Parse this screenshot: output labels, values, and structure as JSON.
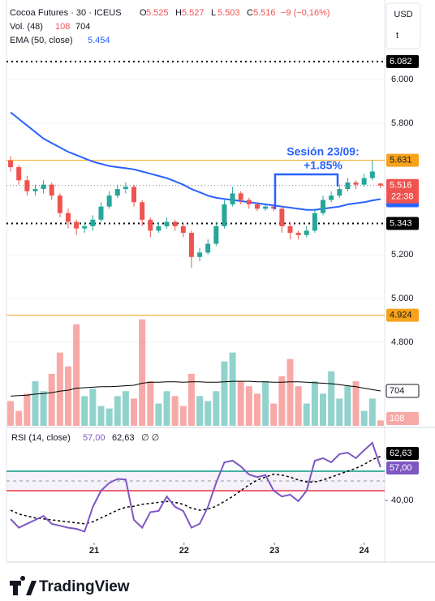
{
  "chart_data": {
    "type": "candlestick",
    "header": {
      "symbol": "Cocoa Futures · 30 · ICEUS",
      "ohlc": [
        {
          "label": "O",
          "value": 5.525
        },
        {
          "label": "H",
          "value": 5.527
        },
        {
          "label": "L",
          "value": 5.503
        },
        {
          "label": "C",
          "value": 5.516
        }
      ],
      "change": "−9 (−0,16%)",
      "currency": "USD",
      "unit": "t",
      "countdown": "22:38"
    },
    "xlim": [
      -0.5,
      45.5
    ],
    "xticks": [
      {
        "value": 10.16,
        "label": "21"
      },
      {
        "value": 21.1,
        "label": "22"
      },
      {
        "value": 32.1,
        "label": "23"
      },
      {
        "value": 43.0,
        "label": "24"
      }
    ],
    "ylim": [
      4.419,
      6.363
    ],
    "yticks": [
      {
        "value": 6.0,
        "label": "6.000"
      },
      {
        "value": 5.8,
        "label": "5.800"
      },
      {
        "value": 5.2,
        "label": "5.200"
      },
      {
        "value": 5.0,
        "label": "5.000"
      },
      {
        "value": 4.8,
        "label": "4.800"
      }
    ],
    "up_color": "#26a69a",
    "down_color": "#ef5350",
    "open": [
      5.63,
      5.6,
      5.54,
      5.49,
      5.5,
      5.52,
      5.47,
      5.39,
      5.35,
      5.32,
      5.33,
      5.36,
      5.42,
      5.47,
      5.5,
      5.51,
      5.44,
      5.36,
      5.31,
      5.33,
      5.35,
      5.33,
      5.3,
      5.19,
      5.21,
      5.25,
      5.33,
      5.43,
      5.48,
      5.45,
      5.43,
      5.41,
      5.42,
      5.41,
      5.33,
      5.3,
      5.29,
      5.31,
      5.39,
      5.45,
      5.47,
      5.5,
      5.53,
      5.52,
      5.55,
      5.525
    ],
    "high": [
      5.65,
      5.61,
      5.56,
      5.52,
      5.54,
      5.53,
      5.48,
      5.41,
      5.36,
      5.35,
      5.38,
      5.44,
      5.49,
      5.52,
      5.53,
      5.52,
      5.45,
      5.37,
      5.35,
      5.37,
      5.36,
      5.34,
      5.31,
      5.23,
      5.27,
      5.35,
      5.45,
      5.51,
      5.49,
      5.46,
      5.44,
      5.43,
      5.43,
      5.42,
      5.35,
      5.31,
      5.33,
      5.41,
      5.47,
      5.49,
      5.52,
      5.55,
      5.54,
      5.57,
      5.63,
      5.527
    ],
    "low": [
      5.58,
      5.52,
      5.47,
      5.47,
      5.48,
      5.45,
      5.37,
      5.32,
      5.29,
      5.3,
      5.31,
      5.35,
      5.41,
      5.46,
      5.48,
      5.42,
      5.33,
      5.28,
      5.3,
      5.32,
      5.31,
      5.28,
      5.14,
      5.17,
      5.2,
      5.24,
      5.32,
      5.42,
      5.43,
      5.41,
      5.4,
      5.4,
      5.4,
      5.3,
      5.27,
      5.27,
      5.28,
      5.3,
      5.38,
      5.44,
      5.46,
      5.49,
      5.5,
      5.51,
      5.54,
      5.503
    ],
    "close": [
      5.6,
      5.54,
      5.49,
      5.5,
      5.52,
      5.47,
      5.39,
      5.35,
      5.32,
      5.33,
      5.36,
      5.42,
      5.47,
      5.5,
      5.51,
      5.44,
      5.36,
      5.31,
      5.33,
      5.35,
      5.33,
      5.3,
      5.19,
      5.21,
      5.25,
      5.33,
      5.43,
      5.48,
      5.45,
      5.43,
      5.41,
      5.42,
      5.41,
      5.33,
      5.3,
      5.29,
      5.31,
      5.39,
      5.45,
      5.47,
      5.5,
      5.53,
      5.52,
      5.55,
      5.58,
      5.516
    ],
    "ema": {
      "name": "EMA (50, close)",
      "color": "#2962ff",
      "values": [
        5.85,
        5.82,
        5.79,
        5.76,
        5.73,
        5.71,
        5.69,
        5.67,
        5.655,
        5.64,
        5.625,
        5.615,
        5.605,
        5.6,
        5.595,
        5.59,
        5.58,
        5.57,
        5.56,
        5.55,
        5.535,
        5.52,
        5.5,
        5.485,
        5.47,
        5.46,
        5.455,
        5.45,
        5.445,
        5.44,
        5.435,
        5.43,
        5.425,
        5.42,
        5.415,
        5.41,
        5.405,
        5.405,
        5.41,
        5.415,
        5.42,
        5.43,
        5.435,
        5.44,
        5.448,
        5.454
      ]
    },
    "hlines": [
      {
        "value": 6.082,
        "color": "#000000",
        "style": "dotted",
        "text_color": "#ffffff"
      },
      {
        "value": 5.631,
        "color": "#f7a21b",
        "style": "solid",
        "text_color": "#131722"
      },
      {
        "value": 5.343,
        "color": "#000000",
        "style": "dotted",
        "text_color": "#ffffff"
      },
      {
        "value": 4.924,
        "color": "#f7a21b",
        "style": "solid",
        "text_color": "#131722"
      }
    ],
    "annotation": [
      "Sesión 23/09:",
      "+1.85%"
    ],
    "volume": {
      "name": "Vol. (48)",
      "ylim": [
        0,
        2900
      ],
      "values": [
        500,
        300,
        650,
        900,
        700,
        1050,
        1480,
        1200,
        2050,
        600,
        750,
        400,
        350,
        600,
        700,
        550,
        2150,
        900,
        450,
        700,
        600,
        400,
        1050,
        600,
        500,
        700,
        1300,
        1480,
        900,
        800,
        650,
        900,
        450,
        1000,
        1350,
        800,
        450,
        900,
        650,
        1100,
        550,
        800,
        900,
        300,
        550,
        108
      ]
    },
    "volume_ma": {
      "color": "#000000",
      "values": [
        600,
        610,
        620,
        640,
        650,
        670,
        700,
        720,
        760,
        770,
        780,
        790,
        790,
        800,
        810,
        820,
        860,
        880,
        880,
        890,
        890,
        880,
        890,
        890,
        880,
        880,
        890,
        900,
        900,
        900,
        890,
        890,
        880,
        880,
        890,
        890,
        880,
        870,
        860,
        850,
        830,
        810,
        790,
        760,
        730,
        704
      ]
    },
    "rsi": {
      "name": "RSI (14, close)",
      "color": "#7e57c2",
      "ylim": [
        18.75,
        76.25
      ],
      "yticks": [
        {
          "value": 40,
          "label": "40,00"
        }
      ],
      "levels": [
        {
          "value": 55,
          "color": "#089981"
        },
        {
          "value": 50,
          "color": "#9598a1"
        },
        {
          "value": 45,
          "color": "#f23645"
        }
      ],
      "values": [
        30.4,
        26,
        28,
        30,
        32,
        28,
        27,
        26,
        25.4,
        24,
        36.7,
        45,
        49,
        51,
        50.8,
        30,
        26,
        34,
        34.6,
        42,
        36.7,
        34.6,
        26,
        28,
        36.7,
        49,
        59.6,
        60.4,
        57.5,
        53.3,
        52,
        53,
        45,
        42,
        43,
        39.6,
        45,
        60.4,
        61.7,
        59.6,
        63.8,
        64.6,
        61.7,
        65.8,
        69.6,
        57
      ],
      "last_label": "57,00",
      "ma": {
        "color": "#000000",
        "values": [
          35,
          33,
          32,
          31,
          30.5,
          30,
          29.5,
          29,
          28.5,
          28,
          29,
          31,
          33,
          35,
          36.5,
          37,
          38,
          38.5,
          39,
          39.5,
          39,
          38,
          36,
          35,
          35.5,
          37,
          39.5,
          42,
          45,
          48,
          50.5,
          52,
          53.5,
          53,
          52,
          50.5,
          49.5,
          49.5,
          50.5,
          52,
          53.5,
          55,
          56.5,
          58.5,
          61,
          62.63
        ],
        "last_label": "62,63"
      },
      "extra": "∅ ∅"
    },
    "brand": "TradingView"
  }
}
